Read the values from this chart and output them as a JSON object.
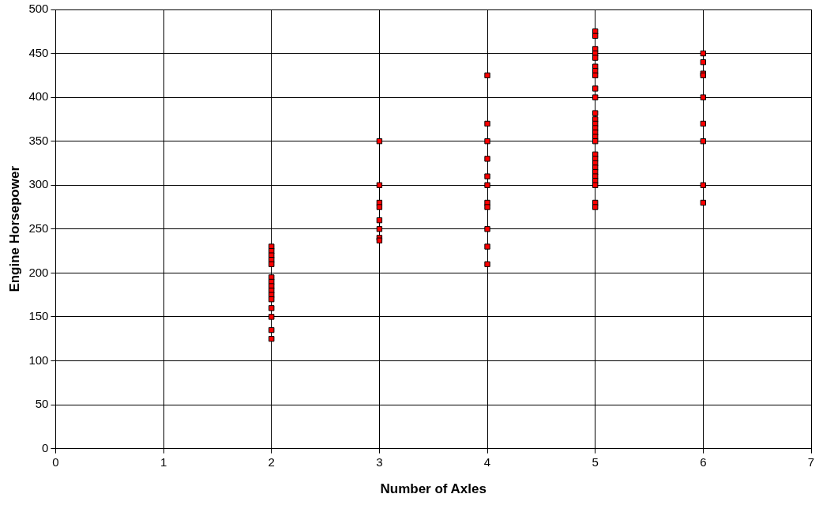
{
  "chart_data": {
    "type": "scatter",
    "xlabel": "Number of Axles",
    "ylabel": "Engine Horsepower",
    "series": [
      {
        "color": "#ff0000",
        "x": [
          2,
          2,
          2,
          2,
          2,
          2,
          2,
          2,
          2,
          2,
          2,
          2,
          2,
          2,
          2,
          3,
          3,
          3,
          3,
          3,
          3,
          3,
          3,
          4,
          4,
          4,
          4,
          4,
          4,
          4,
          4,
          4,
          4,
          4,
          5,
          5,
          5,
          5,
          5,
          5,
          5,
          5,
          5,
          5,
          5,
          5,
          5,
          5,
          5,
          5,
          5,
          5,
          5,
          5,
          5,
          5,
          5,
          5,
          5,
          5,
          5,
          6,
          6,
          6,
          6,
          6,
          6,
          6,
          6,
          6
        ],
        "values": [
          230,
          225,
          220,
          215,
          210,
          195,
          190,
          185,
          180,
          175,
          170,
          160,
          150,
          135,
          125,
          350,
          300,
          280,
          275,
          260,
          250,
          240,
          237,
          425,
          370,
          350,
          330,
          310,
          300,
          280,
          275,
          250,
          230,
          210,
          475,
          470,
          455,
          450,
          445,
          435,
          430,
          425,
          410,
          400,
          382,
          375,
          370,
          365,
          360,
          355,
          350,
          335,
          330,
          325,
          320,
          315,
          310,
          305,
          300,
          280,
          275,
          450,
          440,
          427,
          425,
          400,
          370,
          350,
          300,
          280
        ]
      }
    ],
    "xlim": [
      0,
      7
    ],
    "xticks": [
      0,
      1,
      2,
      3,
      4,
      5,
      6,
      7
    ],
    "ylim": [
      0,
      500
    ],
    "yticks": [
      0,
      50,
      100,
      150,
      200,
      250,
      300,
      350,
      400,
      450,
      500
    ],
    "grid": true,
    "marker": "square"
  }
}
